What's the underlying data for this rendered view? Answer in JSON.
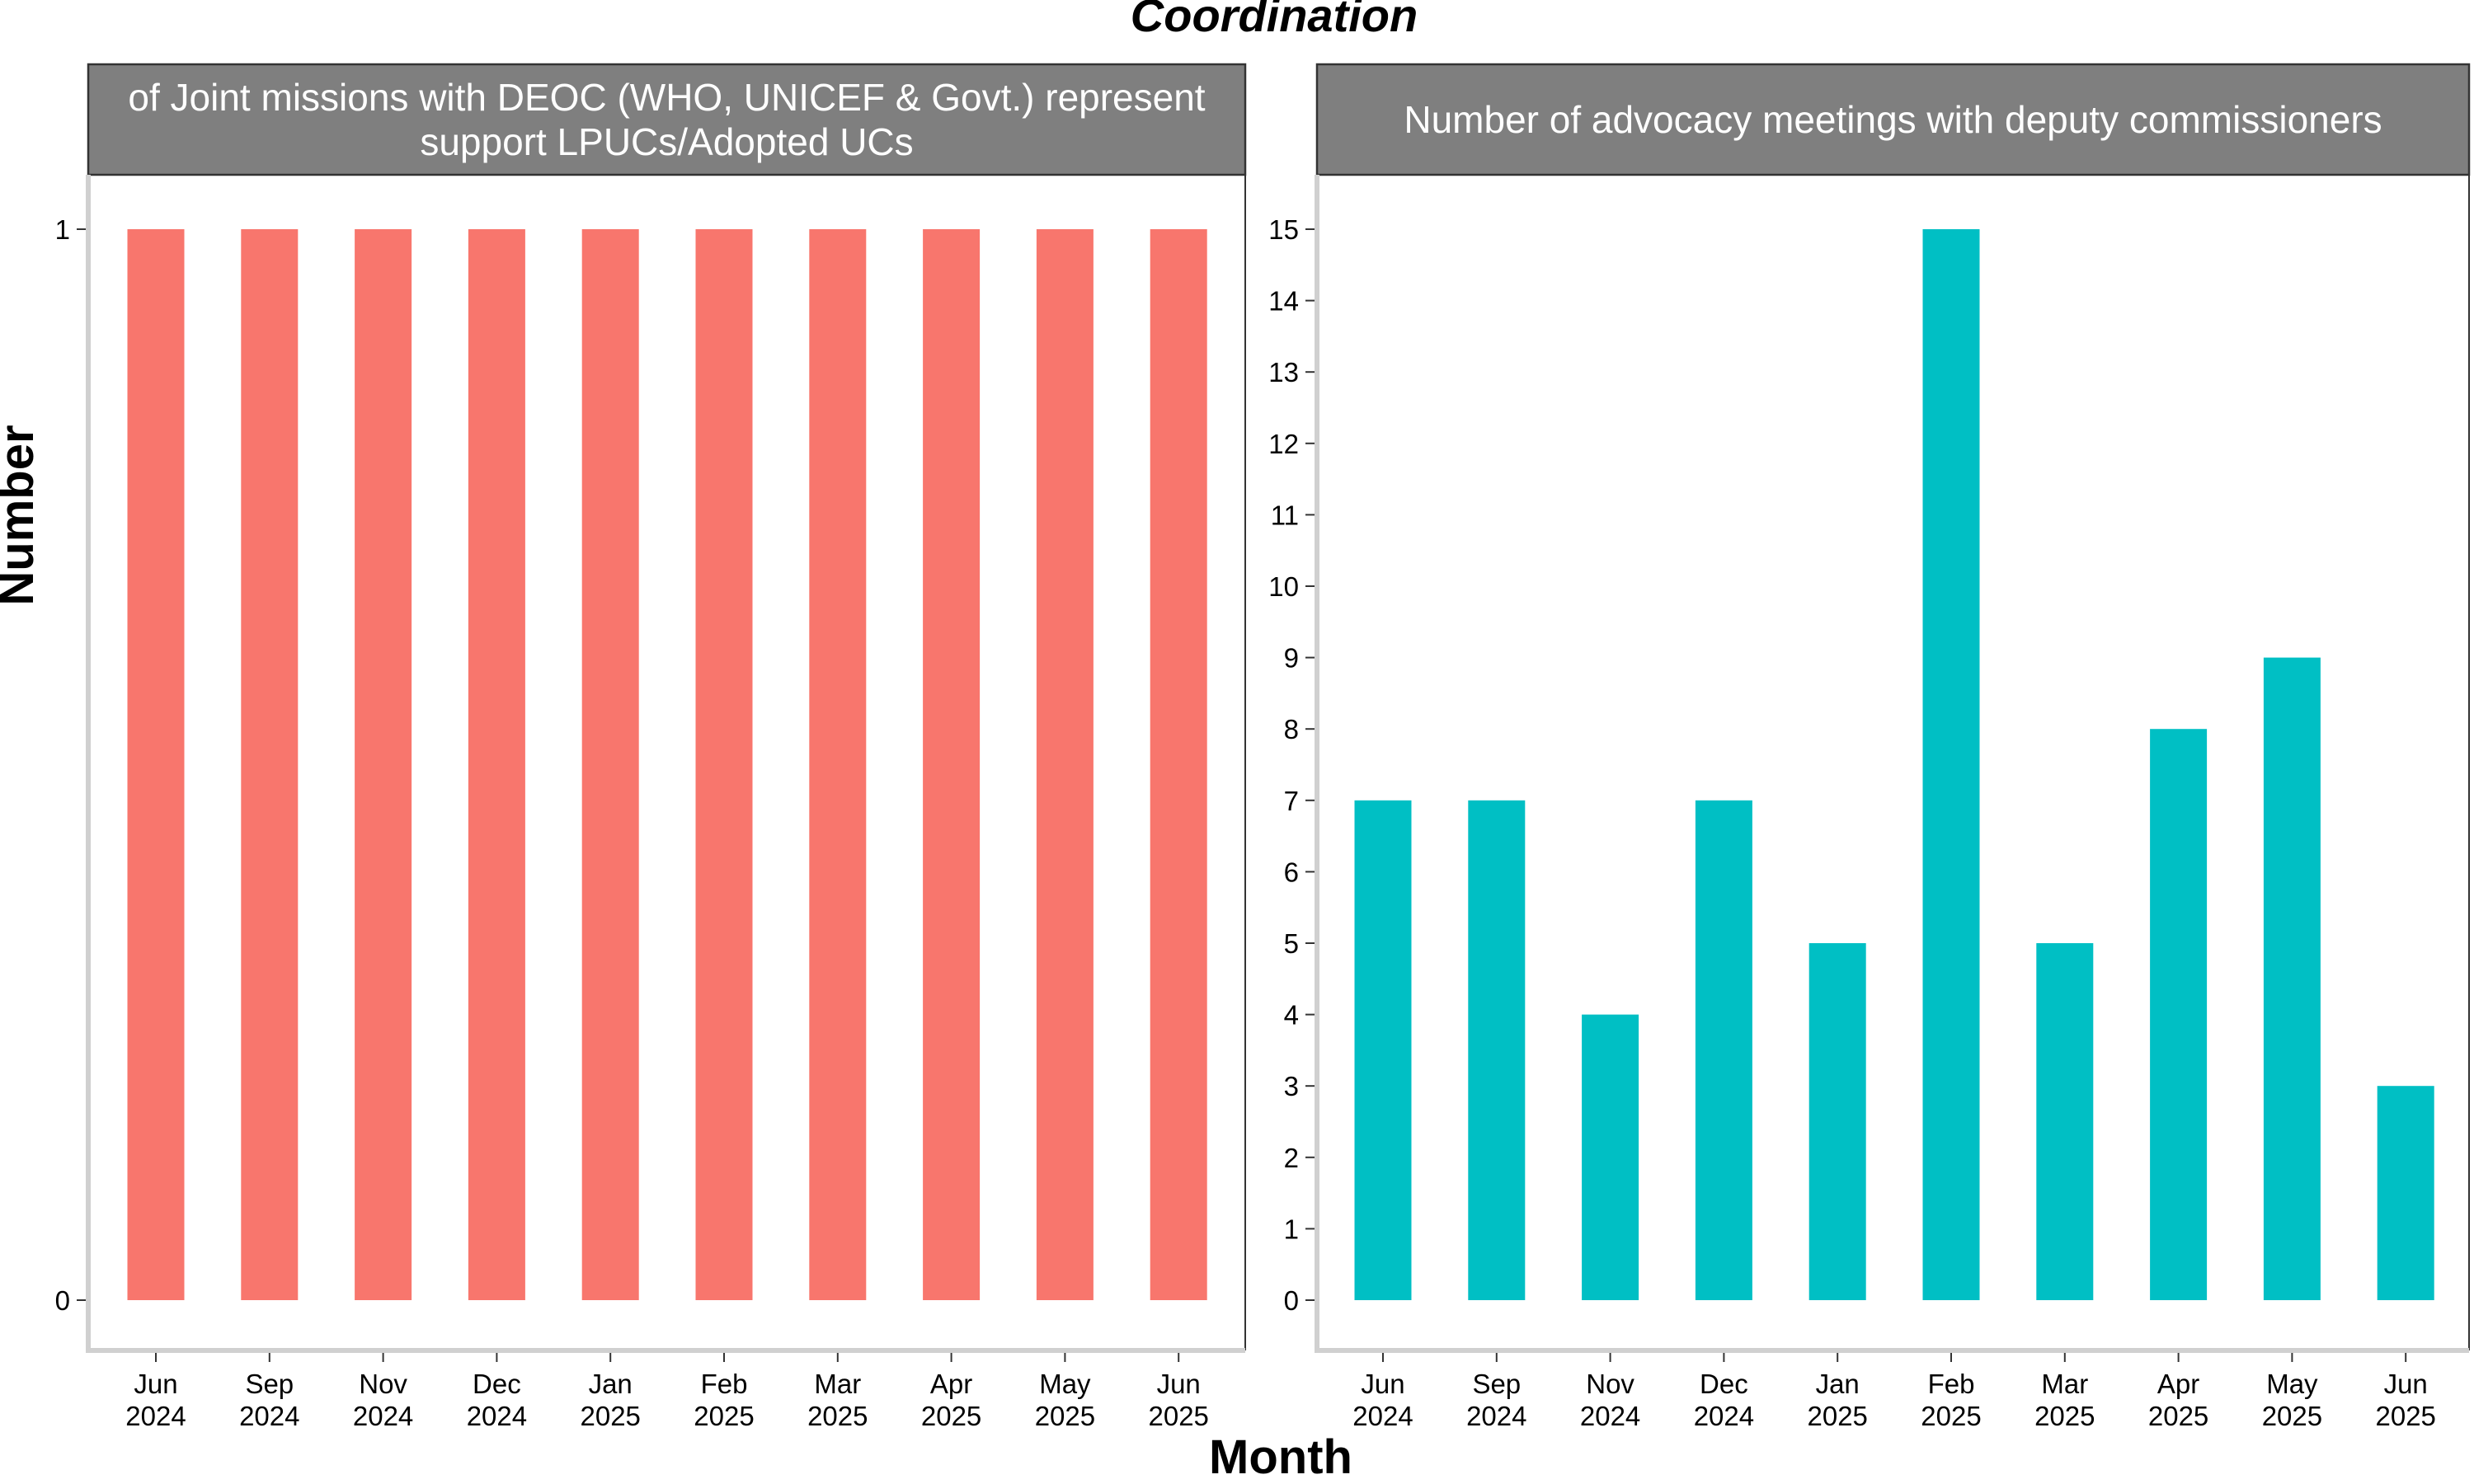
{
  "figure": {
    "title": "Coordination",
    "xlabel": "Month",
    "ylabel": "Number"
  },
  "chart_data": [
    {
      "type": "bar",
      "title": "of Joint missions with DEOC (WHO, UNICEF & Govt.) represent support LPUCs/Adopted UCs",
      "title_lines": [
        "of Joint missions with DEOC (WHO, UNICEF & Govt.) represent",
        "support LPUCs/Adopted UCs"
      ],
      "categories": [
        "Jun 2024",
        "Sep 2024",
        "Nov 2024",
        "Dec 2024",
        "Jan 2025",
        "Feb 2025",
        "Mar 2025",
        "Apr 2025",
        "May 2025",
        "Jun 2025"
      ],
      "category_lines": [
        [
          "Jun",
          "2024"
        ],
        [
          "Sep",
          "2024"
        ],
        [
          "Nov",
          "2024"
        ],
        [
          "Dec",
          "2024"
        ],
        [
          "Jan",
          "2025"
        ],
        [
          "Feb",
          "2025"
        ],
        [
          "Mar",
          "2025"
        ],
        [
          "Apr",
          "2025"
        ],
        [
          "May",
          "2025"
        ],
        [
          "Jun",
          "2025"
        ]
      ],
      "values": [
        1,
        1,
        1,
        1,
        1,
        1,
        1,
        1,
        1,
        1
      ],
      "ylim": [
        0,
        1
      ],
      "yticks": [
        0,
        1
      ],
      "color": "#F8766D",
      "grid": false
    },
    {
      "type": "bar",
      "title": "Number of advocacy meetings with deputy commissioners",
      "title_lines": [
        "Number of advocacy meetings with deputy commissioners"
      ],
      "categories": [
        "Jun 2024",
        "Sep 2024",
        "Nov 2024",
        "Dec 2024",
        "Jan 2025",
        "Feb 2025",
        "Mar 2025",
        "Apr 2025",
        "May 2025",
        "Jun 2025"
      ],
      "category_lines": [
        [
          "Jun",
          "2024"
        ],
        [
          "Sep",
          "2024"
        ],
        [
          "Nov",
          "2024"
        ],
        [
          "Dec",
          "2024"
        ],
        [
          "Jan",
          "2025"
        ],
        [
          "Feb",
          "2025"
        ],
        [
          "Mar",
          "2025"
        ],
        [
          "Apr",
          "2025"
        ],
        [
          "May",
          "2025"
        ],
        [
          "Jun",
          "2025"
        ]
      ],
      "values": [
        7,
        7,
        4,
        7,
        5,
        15,
        5,
        8,
        9,
        3
      ],
      "ylim": [
        0,
        15
      ],
      "yticks": [
        0,
        1,
        2,
        3,
        4,
        5,
        6,
        7,
        8,
        9,
        10,
        11,
        12,
        13,
        14,
        15
      ],
      "color": "#00BFC4",
      "grid": false
    }
  ],
  "colors": {
    "strip_fill": "#7F7F7F",
    "axis_line": "#D0D0D0"
  }
}
